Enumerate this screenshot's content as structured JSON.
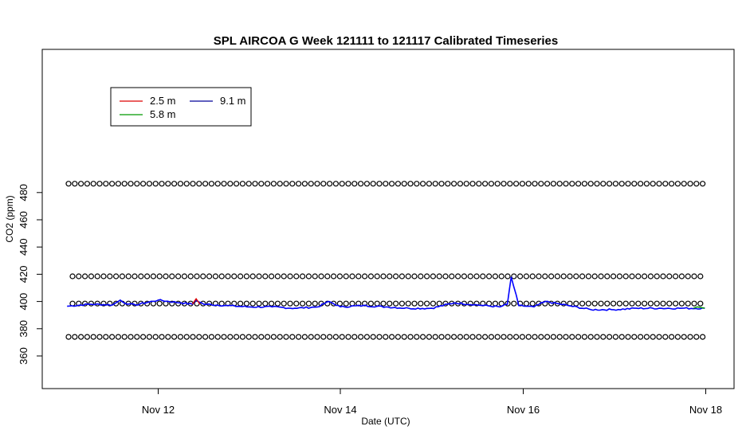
{
  "chart_data": {
    "type": "line",
    "title": "SPL AIRCOA G  Week 121111 to 121117  Calibrated Timeseries",
    "xlabel": "Date (UTC)",
    "ylabel": "CO2 (ppm)",
    "x_ticks": [
      "Nov 12",
      "Nov 14",
      "Nov 16",
      "Nov 18"
    ],
    "x_range": [
      "2012-11-11T00:00",
      "2012-11-18T00:00"
    ],
    "y_ticks": [
      "360",
      "380",
      "400",
      "420",
      "440",
      "460",
      "480"
    ],
    "ylim": [
      348,
      490
    ],
    "legend": {
      "position": "top-left",
      "entries": [
        {
          "name": "2.5 m",
          "color": "#dd0000"
        },
        {
          "name": "5.8 m",
          "color": "#009900"
        },
        {
          "name": "9.1 m",
          "color": "#000099"
        }
      ]
    },
    "series": [
      {
        "name": "9.1 m",
        "color": "#0000ff",
        "x": [
          "2012-11-11T00:00",
          "2012-11-11T06:00",
          "2012-11-11T12:00",
          "2012-11-11T14:00",
          "2012-11-11T16:00",
          "2012-11-11T18:00",
          "2012-11-12T00:00",
          "2012-11-12T06:00",
          "2012-11-12T09:00",
          "2012-11-12T10:00",
          "2012-11-12T12:00",
          "2012-11-12T18:00",
          "2012-11-13T00:00",
          "2012-11-13T06:00",
          "2012-11-13T12:00",
          "2012-11-13T18:00",
          "2012-11-13T21:00",
          "2012-11-14T00:00",
          "2012-11-14T06:00",
          "2012-11-14T12:00",
          "2012-11-14T18:00",
          "2012-11-15T00:00",
          "2012-11-15T06:00",
          "2012-11-15T12:00",
          "2012-11-15T18:00",
          "2012-11-15T20:00",
          "2012-11-15T21:00",
          "2012-11-15T23:00",
          "2012-11-16T03:00",
          "2012-11-16T06:00",
          "2012-11-16T12:00",
          "2012-11-16T18:00",
          "2012-11-17T00:00",
          "2012-11-17T06:00",
          "2012-11-17T12:00",
          "2012-11-17T18:00",
          "2012-11-18T00:00"
        ],
        "y": [
          396.5,
          398,
          397.5,
          401,
          398,
          397.5,
          401,
          399,
          398,
          401,
          398,
          397,
          396,
          396,
          395,
          396,
          400,
          396,
          397,
          396,
          395,
          395,
          399,
          397.5,
          396,
          398,
          418,
          397,
          396,
          400,
          397,
          394,
          394,
          395,
          395,
          395,
          395
        ]
      },
      {
        "name": "2.5 m",
        "color": "#dd0000",
        "x": [
          "2012-11-12T09:00",
          "2012-11-12T10:00",
          "2012-11-12T11:00"
        ],
        "y": [
          398,
          402,
          398
        ]
      },
      {
        "name": "5.8 m",
        "color": "#009900",
        "x": [
          "2012-11-17T21:00",
          "2012-11-17T22:00",
          "2012-11-18T00:00"
        ],
        "y": [
          395,
          396,
          395
        ]
      }
    ],
    "reference_levels": [
      {
        "y": 486.5,
        "marker": "open circle"
      },
      {
        "y": 418.5,
        "marker": "open circle"
      },
      {
        "y": 398.5,
        "marker": "open circle"
      },
      {
        "y": 374.0,
        "marker": "open circle"
      }
    ],
    "grid": false
  }
}
